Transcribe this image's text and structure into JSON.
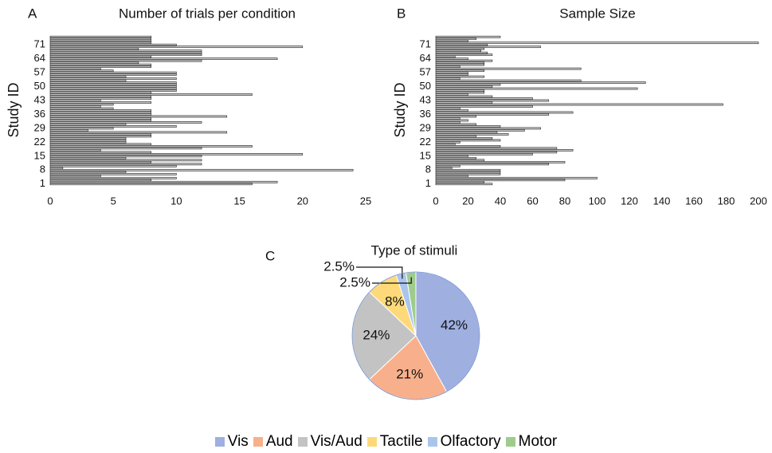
{
  "chart_data": [
    {
      "type": "hbar",
      "panel_label": "A",
      "title": "Number of trials per condition",
      "y_label": "Study ID",
      "categories": [
        "1",
        null,
        null,
        null,
        null,
        null,
        null,
        "8",
        null,
        null,
        null,
        null,
        null,
        null,
        "15",
        null,
        null,
        null,
        null,
        null,
        null,
        "22",
        null,
        null,
        null,
        null,
        null,
        null,
        "29",
        null,
        null,
        null,
        null,
        null,
        null,
        "36",
        null,
        null,
        null,
        null,
        null,
        null,
        "43",
        null,
        null,
        null,
        null,
        null,
        null,
        "50",
        null,
        null,
        null,
        null,
        null,
        null,
        "57",
        null,
        null,
        null,
        null,
        null,
        null,
        "64",
        null,
        null,
        null,
        null,
        null,
        null,
        "71",
        null,
        null,
        null,
        null
      ],
      "values": [
        16,
        18,
        8,
        10,
        4,
        10,
        6,
        24,
        1,
        10,
        12,
        8,
        12,
        6,
        12,
        20,
        8,
        4,
        12,
        16,
        8,
        6,
        6,
        6,
        8,
        8,
        14,
        3,
        5,
        10,
        6,
        12,
        8,
        8,
        14,
        8,
        8,
        8,
        5,
        4,
        5,
        8,
        4,
        8,
        8,
        16,
        8,
        10,
        10,
        10,
        10,
        10,
        6,
        10,
        6,
        10,
        10,
        5,
        4,
        8,
        8,
        7,
        12,
        18,
        8,
        12,
        12,
        12,
        7,
        20,
        10,
        8,
        8,
        8,
        8
      ],
      "color": "#c8c8c8",
      "xlim": [
        0,
        25
      ],
      "xticks": [
        0,
        5,
        10,
        15,
        20,
        25
      ]
    },
    {
      "type": "hbar",
      "panel_label": "B",
      "title": "Sample Size",
      "y_label": "Study ID",
      "categories": [
        "1",
        null,
        null,
        null,
        null,
        null,
        null,
        "8",
        null,
        null,
        null,
        null,
        null,
        null,
        "15",
        null,
        null,
        null,
        null,
        null,
        null,
        "22",
        null,
        null,
        null,
        null,
        null,
        null,
        "29",
        null,
        null,
        null,
        null,
        null,
        null,
        "36",
        null,
        null,
        null,
        null,
        null,
        null,
        "43",
        null,
        null,
        null,
        null,
        null,
        null,
        "50",
        null,
        null,
        null,
        null,
        null,
        null,
        "57",
        null,
        null,
        null,
        null,
        null,
        null,
        "64",
        null,
        null,
        null,
        null,
        null,
        null,
        "71",
        null,
        null,
        null,
        null
      ],
      "values": [
        35,
        30,
        80,
        100,
        20,
        40,
        40,
        40,
        10,
        15,
        70,
        80,
        30,
        25,
        20,
        60,
        75,
        85,
        75,
        40,
        12,
        15,
        40,
        35,
        25,
        45,
        38,
        55,
        65,
        40,
        25,
        15,
        20,
        15,
        25,
        70,
        85,
        20,
        15,
        60,
        178,
        35,
        70,
        60,
        35,
        20,
        30,
        30,
        125,
        35,
        40,
        130,
        90,
        15,
        30,
        20,
        20,
        30,
        90,
        15,
        30,
        30,
        35,
        20,
        12,
        35,
        32,
        28,
        30,
        65,
        32,
        200,
        20,
        25,
        40
      ],
      "color": "#c8c8c8",
      "xlim": [
        0,
        200
      ],
      "xticks": [
        0,
        20,
        40,
        60,
        80,
        100,
        120,
        140,
        160,
        180,
        200
      ]
    },
    {
      "type": "pie",
      "panel_label": "C",
      "title": "Type of stimuli",
      "categories": [
        "Vis",
        "Aud",
        "Vis/Aud",
        "Tactile",
        "Olfactory",
        "Motor"
      ],
      "values": [
        42,
        21,
        24,
        8,
        2.5,
        2.5
      ],
      "value_labels": [
        "42%",
        "21%",
        "24%",
        "8%",
        "2.5%",
        "2.5%"
      ],
      "colors": [
        "#9eafe0",
        "#f8b08c",
        "#c3c3c3",
        "#fdd97a",
        "#aac5ec",
        "#9fcc8c"
      ],
      "legend": "bottom"
    }
  ]
}
